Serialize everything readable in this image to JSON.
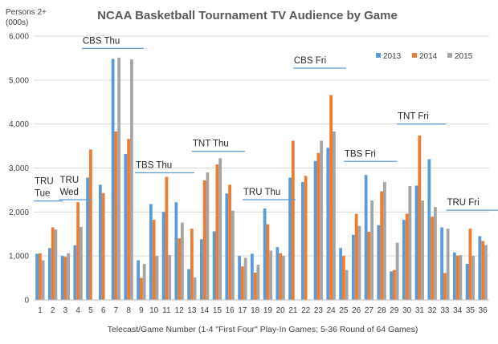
{
  "chart_data": {
    "type": "bar",
    "title": "NCAA Basketball Tournament TV Audience by Game",
    "ylabel": "Persons 2+ (000s)",
    "ylabel_lines": [
      "Persons 2+",
      "(000s)"
    ],
    "xlabel": "Telecast/Game Number (1-4 \"First Four\" Play-In Games; 5-36 Round of 64 Games)",
    "ylim": [
      0,
      6000
    ],
    "yticks": [
      0,
      1000,
      2000,
      3000,
      4000,
      5000,
      6000
    ],
    "ytick_labels": [
      "0",
      "1,000",
      "2,000",
      "3,000",
      "4,000",
      "5,000",
      "6,000"
    ],
    "grid": true,
    "legend_position": "top-right",
    "categories": [
      "1",
      "2",
      "3",
      "4",
      "5",
      "6",
      "7",
      "8",
      "9",
      "10",
      "11",
      "12",
      "13",
      "14",
      "15",
      "16",
      "17",
      "18",
      "19",
      "20",
      "21",
      "22",
      "23",
      "24",
      "25",
      "26",
      "27",
      "28",
      "29",
      "30",
      "31",
      "32",
      "33",
      "34",
      "35",
      "36"
    ],
    "series": [
      {
        "name": "2013",
        "color": "#5B9BD5",
        "values": [
          1050,
          1180,
          1000,
          1240,
          2780,
          2620,
          5480,
          3320,
          900,
          2180,
          2000,
          2220,
          700,
          1380,
          1560,
          2420,
          1000,
          1050,
          2080,
          1200,
          2780,
          2680,
          3160,
          3460,
          1180,
          1480,
          2840,
          1700,
          650,
          1820,
          2600,
          3200,
          1650,
          1080,
          820,
          1450
        ]
      },
      {
        "name": "2014",
        "color": "#ED7D31",
        "values": [
          1060,
          1650,
          980,
          2220,
          3420,
          2430,
          3830,
          3660,
          500,
          1820,
          2800,
          1400,
          1620,
          2720,
          3080,
          2620,
          760,
          620,
          1720,
          1060,
          3620,
          2820,
          3340,
          4660,
          1000,
          1960,
          1550,
          2470,
          680,
          1960,
          3740,
          1890,
          610,
          1010,
          1620,
          1340
        ]
      },
      {
        "name": "2015",
        "color": "#A5A5A5",
        "values": [
          900,
          1600,
          1060,
          1660,
          0,
          0,
          5510,
          5470,
          820,
          1000,
          1020,
          1760,
          510,
          2900,
          3220,
          2030,
          960,
          800,
          1120,
          1000,
          0,
          0,
          3620,
          3830,
          680,
          1680,
          2260,
          2680,
          1300,
          2590,
          2260,
          2110,
          1620,
          1020,
          1000,
          1250
        ]
      }
    ],
    "annotations": [
      {
        "lines": [
          "TRU",
          "Tue"
        ],
        "game_from": 1,
        "game_to": 2.3,
        "value": 2250
      },
      {
        "lines": [
          "TRU",
          "Wed"
        ],
        "game_from": 3,
        "game_to": 4.6,
        "value": 2280
      },
      {
        "lines": [
          "CBS Thu"
        ],
        "game_from": 4.8,
        "game_to": 8.7,
        "value": 5720
      },
      {
        "lines": [
          "TBS Thu"
        ],
        "game_from": 9,
        "game_to": 12.7,
        "value": 2890
      },
      {
        "lines": [
          "TNT Thu"
        ],
        "game_from": 13.5,
        "game_to": 16.7,
        "value": 3380
      },
      {
        "lines": [
          "TRU Thu"
        ],
        "game_from": 17.5,
        "game_to": 20.7,
        "value": 2280
      },
      {
        "lines": [
          "CBS Fri"
        ],
        "game_from": 21.5,
        "game_to": 24.7,
        "value": 5270
      },
      {
        "lines": [
          "TBS Fri"
        ],
        "game_from": 25.5,
        "game_to": 28.7,
        "value": 3150
      },
      {
        "lines": [
          "TNT Fri"
        ],
        "game_from": 29.7,
        "game_to": 32.6,
        "value": 4000
      },
      {
        "lines": [
          "TRU Fri"
        ],
        "game_from": 33.6,
        "game_to": 36.8,
        "value": 2040
      }
    ]
  }
}
